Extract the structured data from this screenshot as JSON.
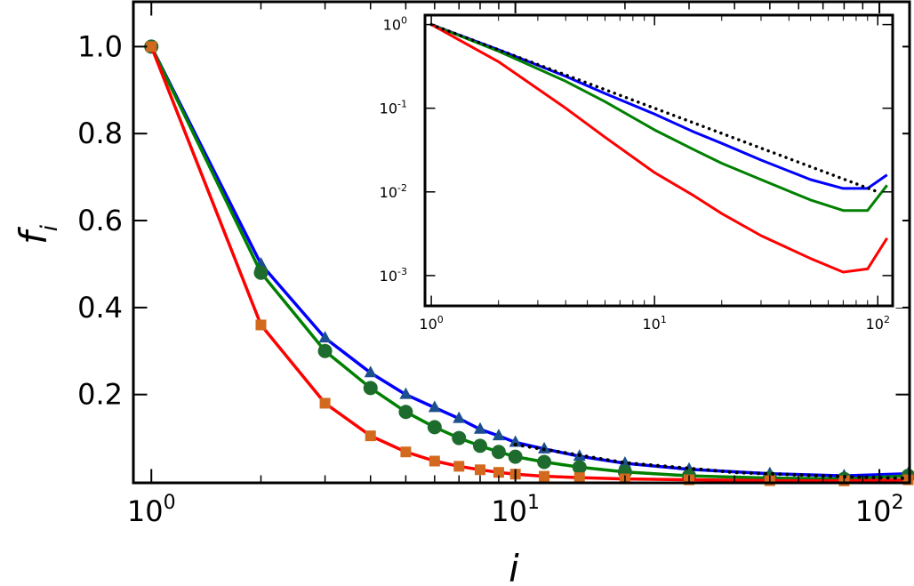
{
  "chart_data": [
    {
      "id": "main",
      "type": "line",
      "xscale": "log",
      "xlim": [
        0.9,
        120
      ],
      "ylim": [
        0.0,
        1.1
      ],
      "xlabel": "i",
      "ylabel": "f_i",
      "xticks": [
        {
          "value": 1,
          "base": "10",
          "exp": "0"
        },
        {
          "value": 10,
          "base": "10",
          "exp": "1"
        },
        {
          "value": 100,
          "base": "10",
          "exp": "2"
        }
      ],
      "yticks": [
        {
          "value": 0.2,
          "label": "0.2"
        },
        {
          "value": 0.4,
          "label": "0.4"
        },
        {
          "value": 0.6,
          "label": "0.6"
        },
        {
          "value": 0.8,
          "label": "0.8"
        },
        {
          "value": 1.0,
          "label": "1.0"
        }
      ],
      "grid": false,
      "series": [
        {
          "color": "#0000ff",
          "marker": "triangle",
          "marker_color": "#1c4f8f",
          "x": [
            1,
            2,
            3,
            4,
            5,
            6,
            7,
            8,
            9,
            10,
            12,
            15,
            20,
            30,
            50,
            80,
            120
          ],
          "y": [
            1.0,
            0.5,
            0.33,
            0.25,
            0.2,
            0.17,
            0.145,
            0.12,
            0.105,
            0.09,
            0.075,
            0.058,
            0.042,
            0.028,
            0.018,
            0.013,
            0.018
          ]
        },
        {
          "color": "#008000",
          "marker": "circle",
          "marker_color": "#1e6b2e",
          "x": [
            1,
            2,
            3,
            4,
            5,
            6,
            7,
            8,
            9,
            10,
            12,
            15,
            20,
            30,
            50,
            80,
            120
          ],
          "y": [
            1.0,
            0.48,
            0.3,
            0.215,
            0.16,
            0.125,
            0.1,
            0.082,
            0.068,
            0.057,
            0.045,
            0.033,
            0.022,
            0.013,
            0.008,
            0.006,
            0.013
          ]
        },
        {
          "color": "#ff0000",
          "marker": "square",
          "marker_color": "#d2691e",
          "x": [
            1,
            2,
            3,
            4,
            5,
            6,
            7,
            8,
            9,
            10,
            12,
            15,
            20,
            30,
            50,
            80,
            120
          ],
          "y": [
            1.0,
            0.36,
            0.18,
            0.105,
            0.068,
            0.047,
            0.035,
            0.027,
            0.021,
            0.017,
            0.012,
            0.009,
            0.006,
            0.004,
            0.002,
            0.0015,
            0.004
          ]
        },
        {
          "color": "#000000",
          "style": "dotted",
          "x": [
            10,
            20,
            40,
            80,
            120
          ],
          "y": [
            0.085,
            0.043,
            0.021,
            0.011,
            0.007
          ]
        }
      ]
    },
    {
      "id": "inset",
      "type": "line",
      "xscale": "log",
      "yscale": "log",
      "xlim": [
        0.95,
        115
      ],
      "ylim": [
        0.00045,
        1.25
      ],
      "xticks": [
        {
          "value": 1,
          "base": "10",
          "exp": "0"
        },
        {
          "value": 10,
          "base": "10",
          "exp": "1"
        },
        {
          "value": 100,
          "base": "10",
          "exp": "2"
        }
      ],
      "yticks": [
        {
          "value": 1,
          "base": "10",
          "exp": "0"
        },
        {
          "value": 0.1,
          "base": "10",
          "exp": "-1"
        },
        {
          "value": 0.01,
          "base": "10",
          "exp": "-2"
        },
        {
          "value": 0.001,
          "base": "10",
          "exp": "-3"
        }
      ],
      "grid": false,
      "series": [
        {
          "color": "#0000ff",
          "x": [
            1,
            2,
            4,
            6,
            10,
            15,
            20,
            30,
            50,
            70,
            90,
            110
          ],
          "y": [
            1.0,
            0.5,
            0.24,
            0.15,
            0.085,
            0.052,
            0.038,
            0.024,
            0.014,
            0.011,
            0.011,
            0.016
          ]
        },
        {
          "color": "#008000",
          "x": [
            1,
            2,
            4,
            6,
            10,
            15,
            20,
            30,
            50,
            70,
            90,
            110
          ],
          "y": [
            1.0,
            0.48,
            0.21,
            0.12,
            0.055,
            0.032,
            0.022,
            0.014,
            0.008,
            0.006,
            0.006,
            0.012
          ]
        },
        {
          "color": "#ff0000",
          "x": [
            1,
            2,
            4,
            6,
            10,
            15,
            20,
            30,
            50,
            70,
            90,
            110
          ],
          "y": [
            1.0,
            0.36,
            0.1,
            0.045,
            0.017,
            0.009,
            0.0055,
            0.003,
            0.0016,
            0.0011,
            0.0012,
            0.0028
          ]
        },
        {
          "color": "#000000",
          "style": "dotted",
          "x": [
            1,
            10,
            100
          ],
          "y": [
            1.0,
            0.1,
            0.01
          ]
        }
      ]
    }
  ]
}
